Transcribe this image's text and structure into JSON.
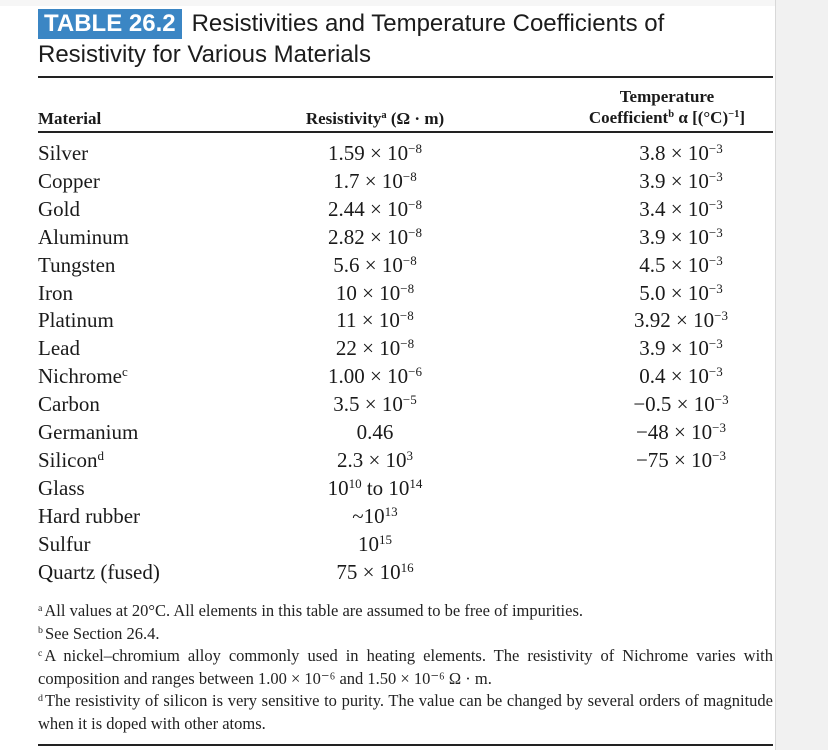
{
  "table_number": "TABLE 26.2",
  "title": "Resistivities and Temperature Coefficients of Resistivity for Various Materials",
  "columns": {
    "material": "Material",
    "resistivity": {
      "text": "Resistivity",
      "footnote": "a",
      "unit": " (Ω · m)"
    },
    "coefficient_line1": "Temperature",
    "coefficient_line2": {
      "text": "Coefficient",
      "footnote": "b",
      "unit": " α [(°C)",
      "exp": "−1",
      "close": "]"
    }
  },
  "rows": [
    {
      "material": "Silver",
      "res_mant": "1.59 × 10",
      "res_exp": "−8",
      "coef_mant": "3.8 × 10",
      "coef_exp": "−3"
    },
    {
      "material": "Copper",
      "res_mant": "1.7 × 10",
      "res_exp": "−8",
      "coef_mant": "3.9 × 10",
      "coef_exp": "−3"
    },
    {
      "material": "Gold",
      "res_mant": "2.44 × 10",
      "res_exp": "−8",
      "coef_mant": "3.4 × 10",
      "coef_exp": "−3"
    },
    {
      "material": "Aluminum",
      "res_mant": "2.82 × 10",
      "res_exp": "−8",
      "coef_mant": "3.9 × 10",
      "coef_exp": "−3"
    },
    {
      "material": "Tungsten",
      "res_mant": "5.6 × 10",
      "res_exp": "−8",
      "coef_mant": "4.5 × 10",
      "coef_exp": "−3"
    },
    {
      "material": "Iron",
      "res_mant": "10 × 10",
      "res_exp": "−8",
      "coef_mant": "5.0 × 10",
      "coef_exp": "−3"
    },
    {
      "material": "Platinum",
      "res_mant": "11 × 10",
      "res_exp": "−8",
      "coef_mant": "3.92 × 10",
      "coef_exp": "−3"
    },
    {
      "material": "Lead",
      "res_mant": "22 × 10",
      "res_exp": "−8",
      "coef_mant": "3.9 × 10",
      "coef_exp": "−3"
    },
    {
      "material": "Nichrome",
      "mat_note": "c",
      "res_mant": "1.00 × 10",
      "res_exp": "−6",
      "coef_mant": "0.4 × 10",
      "coef_exp": "−3"
    },
    {
      "material": "Carbon",
      "res_mant": "3.5 × 10",
      "res_exp": "−5",
      "coef_mant": "−0.5 × 10",
      "coef_exp": "−3"
    },
    {
      "material": "Germanium",
      "res_mant": "0.46",
      "res_exp": "",
      "coef_mant": "−48 × 10",
      "coef_exp": "−3"
    },
    {
      "material": "Silicon",
      "mat_note": "d",
      "res_mant": "2.3 × 10",
      "res_exp": "3",
      "coef_mant": "−75 × 10",
      "coef_exp": "−3"
    },
    {
      "material": "Glass",
      "res_mant": "10",
      "res_exp": "10",
      "res_mid": " to 10",
      "res_exp2": "14",
      "coef_mant": "",
      "coef_exp": ""
    },
    {
      "material": "Hard rubber",
      "res_mant": "~10",
      "res_exp": "13",
      "coef_mant": "",
      "coef_exp": ""
    },
    {
      "material": "Sulfur",
      "res_mant": "10",
      "res_exp": "15",
      "coef_mant": "",
      "coef_exp": ""
    },
    {
      "material": "Quartz (fused)",
      "res_mant": "75 × 10",
      "res_exp": "16",
      "coef_mant": "",
      "coef_exp": ""
    }
  ],
  "footnotes": [
    {
      "mark": "a",
      "text": "All values at 20°C. All elements in this table are assumed to be free of impurities."
    },
    {
      "mark": "b",
      "text": "See Section 26.4."
    },
    {
      "mark": "c",
      "text": "A nickel–chromium alloy commonly used in heating elements. The resistivity of Nichrome varies with composition and ranges between 1.00 × 10⁻⁶ and 1.50 × 10⁻⁶ Ω · m."
    },
    {
      "mark": "d",
      "text": "The resistivity of silicon is very sensitive to purity. The value can be changed by several orders of magnitude when it is doped with other atoms."
    }
  ]
}
